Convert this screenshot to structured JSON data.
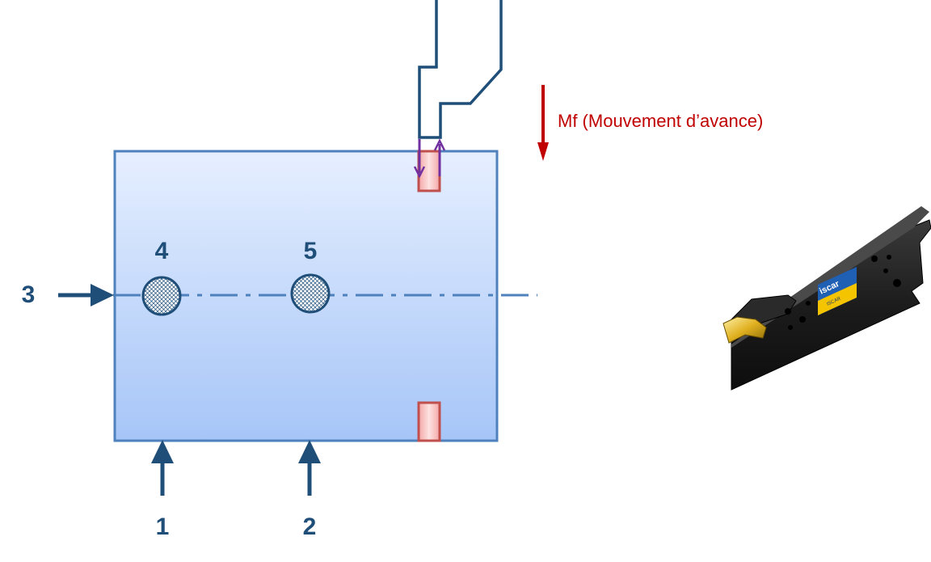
{
  "labels": {
    "support_1": "1",
    "support_2": "2",
    "support_3": "3",
    "support_4": "4",
    "support_5": "5",
    "feed_motion": "Mf (Mouvement d’avance)"
  },
  "tool_image": {
    "brand": "iscar",
    "brand_sub": "ISCAR"
  },
  "colors": {
    "workpiece_fill_top": "#e6efff",
    "workpiece_fill_bottom": "#a6c5f7",
    "workpiece_border": "#4f81bd",
    "labels_arrows": "#1f4e79",
    "groove_fill": "#f8c8c8",
    "groove_border": "#c0504d",
    "feed_arrow": "#c00000",
    "chip_arrow": "#7030a0",
    "tool_outline": "#1f4e79"
  }
}
